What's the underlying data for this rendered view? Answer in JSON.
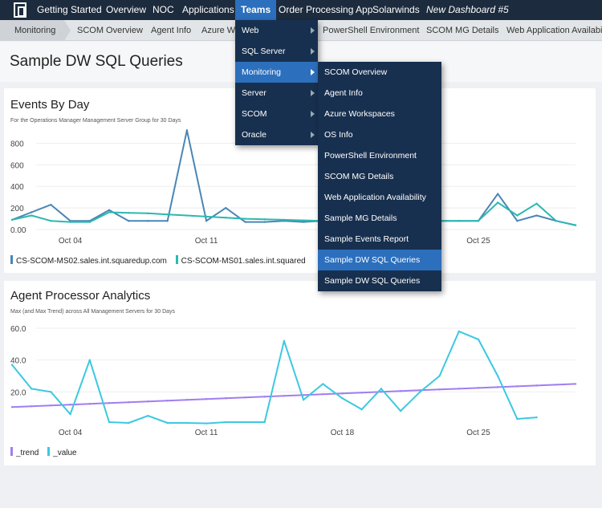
{
  "topnav": {
    "items": [
      {
        "label": "Getting Started"
      },
      {
        "label": "Overview"
      },
      {
        "label": "NOC"
      },
      {
        "label": "Applications"
      },
      {
        "label": "Teams"
      },
      {
        "label": "Order Processing App"
      },
      {
        "label": "Solarwinds"
      },
      {
        "label": "New Dashboard #5"
      }
    ]
  },
  "subnav": {
    "items": [
      {
        "label": "Monitoring"
      },
      {
        "label": "SCOM Overview"
      },
      {
        "label": "Agent Info"
      },
      {
        "label": "Azure Wo"
      },
      {
        "label": "PowerShell Environment"
      },
      {
        "label": "SCOM MG Details"
      },
      {
        "label": "Web Application Availabili"
      }
    ]
  },
  "page": {
    "title": "Sample DW SQL Queries"
  },
  "teams_menu": {
    "items": [
      {
        "label": "Web"
      },
      {
        "label": "SQL Server"
      },
      {
        "label": "Monitoring"
      },
      {
        "label": "Server"
      },
      {
        "label": "SCOM"
      },
      {
        "label": "Oracle"
      }
    ]
  },
  "monitoring_menu": {
    "items": [
      {
        "label": "SCOM Overview"
      },
      {
        "label": "Agent Info"
      },
      {
        "label": "Azure Workspaces"
      },
      {
        "label": "OS Info"
      },
      {
        "label": "PowerShell Environment"
      },
      {
        "label": "SCOM MG Details"
      },
      {
        "label": "Web Application Availability"
      },
      {
        "label": "Sample MG Details"
      },
      {
        "label": "Sample Events Report"
      },
      {
        "label": "Sample DW SQL Queries"
      },
      {
        "label": "Sample DW SQL Queries"
      }
    ]
  },
  "colors": {
    "nav_bg": "#1c2b3d",
    "accent": "#2c6fbd",
    "menu_bg": "#18304f",
    "series_blue": "#4a86b5",
    "series_teal": "#2cb8b0",
    "value_cyan": "#3cc8e0",
    "trend_purple": "#a07ef0"
  },
  "events_panel": {
    "title": "Events By Day",
    "subtitle": "For the Operations Manager Management Server Group for 30 Days",
    "legend": [
      {
        "label": "CS-SCOM-MS02.sales.int.squaredup.com"
      },
      {
        "label": "CS-SCOM-MS01.sales.int.squared"
      }
    ]
  },
  "agent_panel": {
    "title": "Agent Processor Analytics",
    "subtitle": "Max (and Max Trend) across All Management Servers for 30 Days",
    "legend": [
      {
        "label": "_trend"
      },
      {
        "label": "_value"
      }
    ]
  },
  "chart_data": [
    {
      "type": "line",
      "title": "Events By Day",
      "xlabel": "",
      "ylabel": "",
      "x": [
        1,
        2,
        3,
        4,
        5,
        6,
        7,
        8,
        9,
        10,
        11,
        12,
        13,
        14,
        15,
        16,
        17,
        18,
        19,
        20,
        21,
        22,
        23,
        24,
        25,
        26,
        27,
        28,
        29,
        30
      ],
      "x_tick_labels": [
        "Oct 04",
        "Oct 11",
        "Oct 18",
        "Oct 25"
      ],
      "x_ticks": [
        4,
        11,
        18,
        25
      ],
      "y_tick_labels": [
        "800",
        "600",
        "400",
        "200",
        "0.00"
      ],
      "y_ticks": [
        800,
        600,
        400,
        200,
        0
      ],
      "ylim": [
        0,
        900
      ],
      "series": [
        {
          "name": "CS-SCOM-MS02.sales.int.squaredup.com",
          "values": [
            90,
            160,
            230,
            80,
            80,
            180,
            80,
            80,
            80,
            920,
            80,
            200,
            70,
            70,
            80,
            70,
            80,
            80,
            80,
            80,
            80,
            80,
            80,
            80,
            80,
            330,
            80,
            130,
            80,
            40
          ]
        },
        {
          "name": "CS-SCOM-MS01.sales.int.squared",
          "values": [
            90,
            130,
            80,
            70,
            70,
            160,
            155,
            150,
            140,
            130,
            120,
            110,
            100,
            95,
            90,
            85,
            80,
            80,
            80,
            80,
            80,
            80,
            80,
            80,
            80,
            250,
            130,
            240,
            80,
            40
          ]
        }
      ]
    },
    {
      "type": "line",
      "title": "Agent Processor Analytics",
      "xlabel": "",
      "ylabel": "",
      "x": [
        1,
        2,
        3,
        4,
        5,
        6,
        7,
        8,
        9,
        10,
        11,
        12,
        13,
        14,
        15,
        16,
        17,
        18,
        19,
        20,
        21,
        22,
        23,
        24,
        25,
        26,
        27,
        28,
        29,
        30
      ],
      "x_tick_labels": [
        "Oct 04",
        "Oct 11",
        "Oct 18",
        "Oct 25"
      ],
      "x_ticks": [
        4,
        11,
        18,
        25
      ],
      "y_tick_labels": [
        "60.0",
        "40.0",
        "20.0"
      ],
      "y_ticks": [
        60,
        40,
        20
      ],
      "ylim": [
        0,
        62
      ],
      "series": [
        {
          "name": "_trend",
          "values": [
            10.5,
            11,
            11.5,
            12,
            12.5,
            13,
            13.5,
            14,
            14.5,
            15,
            15.5,
            16,
            16.5,
            17,
            17.5,
            18,
            18.5,
            19,
            19.5,
            20,
            20.5,
            21,
            21.5,
            22,
            22.5,
            23,
            23.5,
            24,
            24.5,
            25
          ]
        },
        {
          "name": "_value",
          "values": [
            37,
            22,
            20,
            6,
            40,
            1,
            0.5,
            5,
            0.5,
            0.5,
            0.2,
            1,
            1,
            1,
            52,
            15,
            25,
            16,
            9,
            22,
            8,
            20,
            30,
            58,
            53,
            30,
            3,
            4,
            null,
            null
          ]
        }
      ]
    }
  ]
}
